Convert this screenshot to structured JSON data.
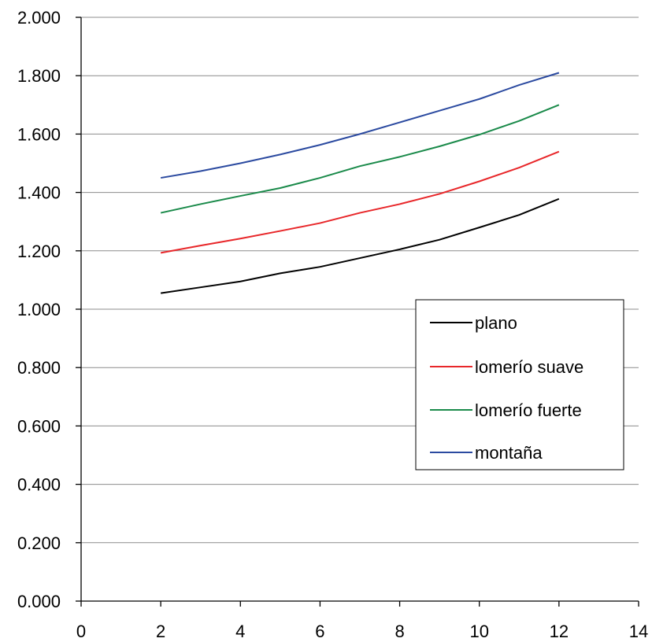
{
  "chart_data": {
    "type": "line",
    "title": "",
    "xlabel": "",
    "ylabel": "",
    "xlim": [
      0,
      14
    ],
    "ylim": [
      0,
      2
    ],
    "x_ticks": [
      0,
      2,
      4,
      6,
      8,
      10,
      12,
      14
    ],
    "x_tick_labels": [
      "0",
      "2",
      "4",
      "6",
      "8",
      "10",
      "12",
      "14"
    ],
    "y_ticks": [
      0,
      0.2,
      0.4,
      0.6,
      0.8,
      1.0,
      1.2,
      1.4,
      1.6,
      1.8,
      2.0
    ],
    "y_tick_labels": [
      "0.000",
      "0.200",
      "0.400",
      "0.600",
      "0.800",
      "1.000",
      "1.200",
      "1.400",
      "1.600",
      "1.800",
      "2.000"
    ],
    "grid": "horizontal",
    "legend_position": "right",
    "x": [
      2,
      3,
      4,
      5,
      6,
      7,
      8,
      9,
      10,
      11,
      12
    ],
    "series": [
      {
        "name": "plano",
        "color": "#000000",
        "values": [
          1.055,
          1.075,
          1.095,
          1.123,
          1.145,
          1.175,
          1.205,
          1.238,
          1.28,
          1.323,
          1.378
        ]
      },
      {
        "name": "lomerío suave",
        "color": "#e8272a",
        "values": [
          1.193,
          1.218,
          1.242,
          1.268,
          1.295,
          1.33,
          1.36,
          1.395,
          1.438,
          1.485,
          1.54
        ]
      },
      {
        "name": "lomerío fuerte",
        "color": "#1a8a4a",
        "values": [
          1.33,
          1.36,
          1.388,
          1.415,
          1.45,
          1.49,
          1.522,
          1.558,
          1.598,
          1.645,
          1.7
        ]
      },
      {
        "name": "montaña",
        "color": "#2b4aa0",
        "values": [
          1.45,
          1.473,
          1.5,
          1.53,
          1.563,
          1.6,
          1.64,
          1.68,
          1.72,
          1.768,
          1.81
        ]
      }
    ]
  }
}
